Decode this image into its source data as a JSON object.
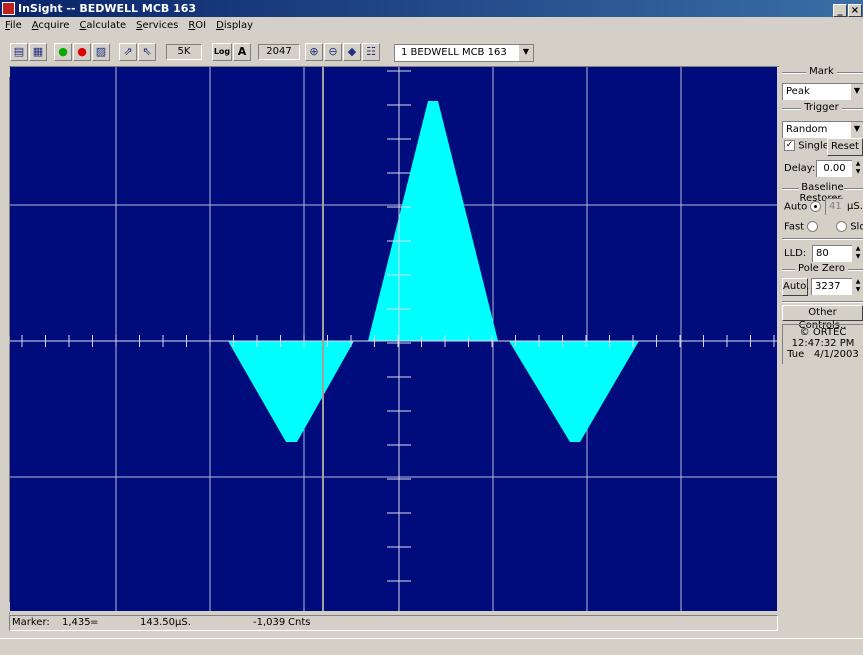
{
  "window": {
    "title": "InSight -- BEDWELL MCB 163",
    "controls": [
      "_",
      "×"
    ]
  },
  "menu": [
    "File",
    "Acquire",
    "Calculate",
    "Services",
    "ROI",
    "Display"
  ],
  "toolbar": {
    "icons": [
      "open-icon",
      "save-icon",
      "go-icon",
      "stop-icon",
      "clear-icon",
      "peak-left-icon",
      "peak-right-icon",
      "zoom-in-icon",
      "zoom-out-icon",
      "center-icon",
      "fullview-icon"
    ],
    "vertical_scale": "5K",
    "log_label": "Log",
    "auto_label": "A",
    "horizontal_field": "2047",
    "detector": "1 BEDWELL MCB 163"
  },
  "panel": {
    "mark_title": "Mark",
    "mark_value": "Peak",
    "trigger_title": "Trigger",
    "trigger_value": "Random",
    "single_label": "Single",
    "single_checked": true,
    "reset_label": "Reset",
    "delay_label": "Delay:",
    "delay_value": "0.00",
    "baseline_title": "Baseline Restorer",
    "auto_label": "Auto",
    "auto_selected": true,
    "auto_value": "41",
    "auto_unit": "µS.",
    "fast_label": "Fast",
    "slow_label": "Slow",
    "lld_label": "LLD:",
    "lld_value": "80",
    "polezero_title": "Pole Zero",
    "polezero_button": "Auto.",
    "polezero_value": "3237",
    "other_controls": "Other Controls..",
    "copyright": "© ORTEC",
    "time": "12:47:32 PM",
    "day": "Tue",
    "date": "4/1/2003"
  },
  "status": {
    "marker_label": "Marker:",
    "marker_channel": "1,435",
    "marker_sep": "=",
    "marker_time": "143.50",
    "marker_time_unit": "µS.",
    "marker_counts": "-1,039",
    "marker_counts_unit": "Cnts"
  },
  "colors": {
    "plot_bg": "#000c7c",
    "trace": "#00ffff",
    "grid": "#b8b8d8",
    "titlebar": "#0a246a"
  }
}
